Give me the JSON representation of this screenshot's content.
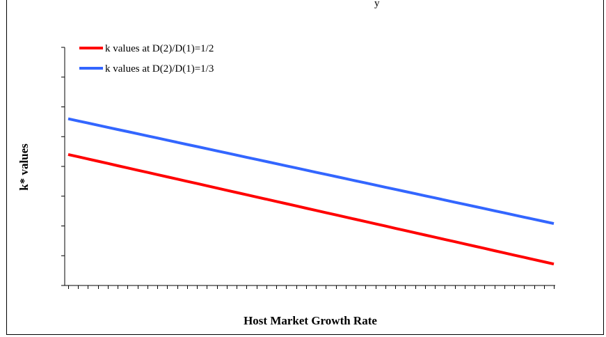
{
  "chart_data": {
    "type": "line",
    "title": "",
    "xlabel": "Host Market Growth Rate",
    "ylabel": "k* values",
    "x_count": 50,
    "ylim": [
      0,
      5
    ],
    "grid": false,
    "legend_position": "top-left",
    "series": [
      {
        "name": "k values at D(2)/D(1)=1/2",
        "color": "#ff0000",
        "start": 2.75,
        "end": 0.45
      },
      {
        "name": "k values at D(2)/D(1)=1/3",
        "color": "#3366ff",
        "start": 3.5,
        "end": 1.3
      }
    ]
  }
}
